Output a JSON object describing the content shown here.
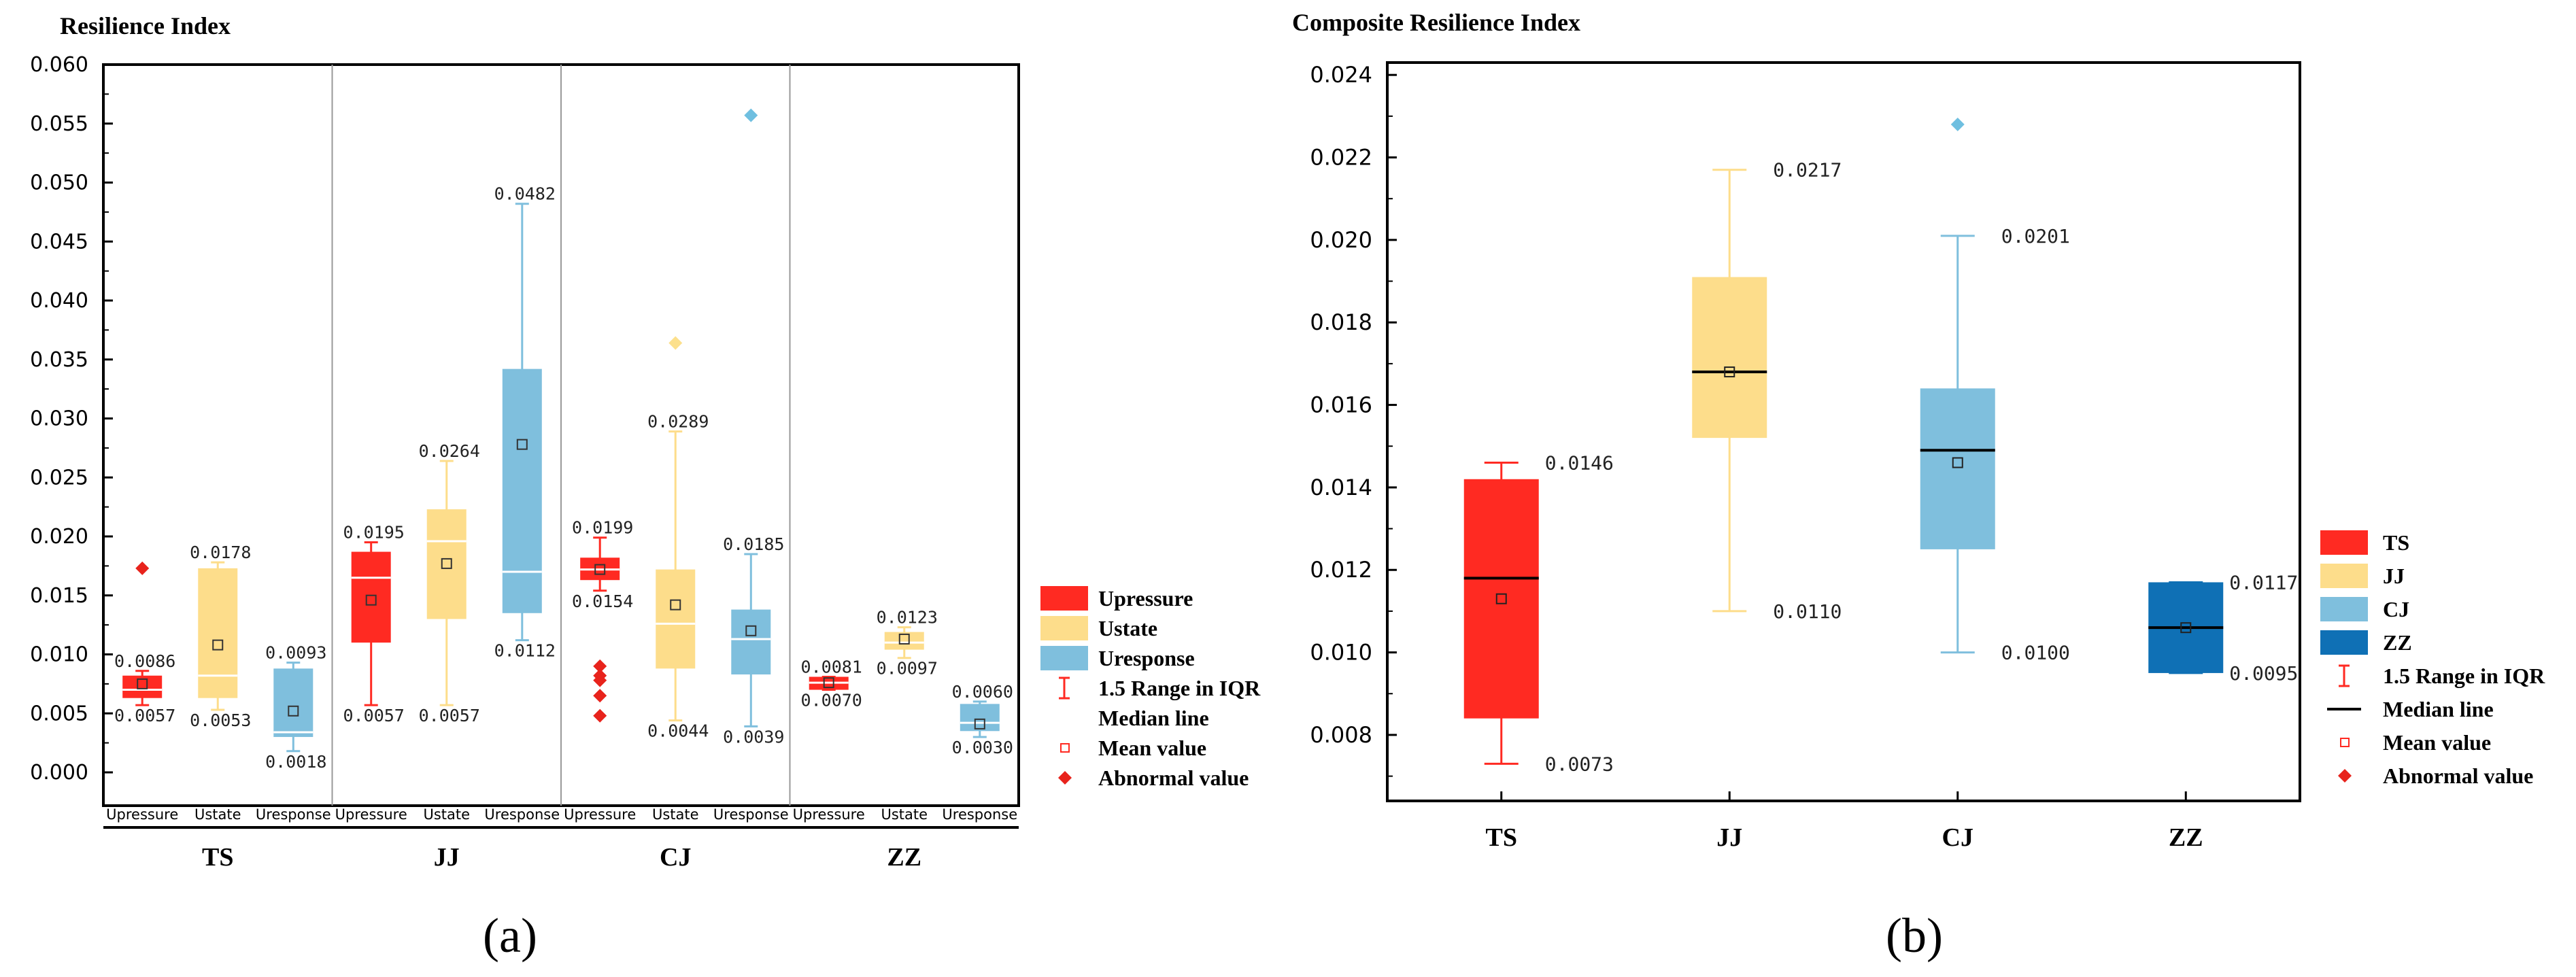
{
  "colors": {
    "red": "#FF2A22",
    "yellow": "#FDDD8B",
    "lightblue": "#7FBFDD",
    "darkblue": "#0F70B5",
    "axis": "#000000",
    "sep": "#999999",
    "outlier_red": "#E8231C",
    "outlier_yellow": "#FCE08C",
    "outlier_blue": "#6FBFE0"
  },
  "chart_data": [
    {
      "id": "a",
      "type": "box",
      "title": "Resilience Index",
      "ylim": [
        0.0,
        0.06
      ],
      "yticks": [
        "0.000",
        "0.005",
        "0.010",
        "0.015",
        "0.020",
        "0.025",
        "0.030",
        "0.035",
        "0.040",
        "0.045",
        "0.050",
        "0.055",
        "0.060"
      ],
      "groups": [
        "TS",
        "JJ",
        "CJ",
        "ZZ"
      ],
      "subcategories": [
        "Upressure",
        "Ustate",
        "Uresponse"
      ],
      "boxes": [
        {
          "group": "TS",
          "sub": "Upressure",
          "color": "red",
          "median_color": "white",
          "min": 0.0057,
          "q1": 0.0063,
          "median": 0.007,
          "q3": 0.0082,
          "max": 0.0086,
          "mean": 0.0075,
          "outliers": [
            0.0173
          ],
          "labels": [
            {
              "text": "0.0086",
              "value": 0.0086
            },
            {
              "text": "0.0057",
              "value": 0.0057
            }
          ]
        },
        {
          "group": "TS",
          "sub": "Ustate",
          "color": "yellow",
          "median_color": "white",
          "min": 0.0053,
          "q1": 0.0063,
          "median": 0.0082,
          "q3": 0.0173,
          "max": 0.0178,
          "mean": 0.0108,
          "outliers": [],
          "labels": [
            {
              "text": "0.0178",
              "value": 0.0178
            },
            {
              "text": "0.0053",
              "value": 0.0053
            }
          ]
        },
        {
          "group": "TS",
          "sub": "Uresponse",
          "color": "lightblue",
          "median_color": "white",
          "min": 0.0018,
          "q1": 0.003,
          "median": 0.0034,
          "q3": 0.0088,
          "max": 0.0093,
          "mean": 0.0052,
          "outliers": [],
          "labels": [
            {
              "text": "0.0093",
              "value": 0.0093
            },
            {
              "text": "0.0018",
              "value": 0.0018
            }
          ]
        },
        {
          "group": "JJ",
          "sub": "Upressure",
          "color": "red",
          "median_color": "white",
          "min": 0.0057,
          "q1": 0.011,
          "median": 0.0165,
          "q3": 0.0187,
          "max": 0.0195,
          "mean": 0.0146,
          "outliers": [],
          "labels": [
            {
              "text": "0.0195",
              "value": 0.0195
            },
            {
              "text": "0.0057",
              "value": 0.0057
            }
          ]
        },
        {
          "group": "JJ",
          "sub": "Ustate",
          "color": "yellow",
          "median_color": "white",
          "min": 0.0057,
          "q1": 0.013,
          "median": 0.0196,
          "q3": 0.0223,
          "max": 0.0264,
          "mean": 0.0177,
          "outliers": [],
          "labels": [
            {
              "text": "0.0264",
              "value": 0.0264
            },
            {
              "text": "0.0057",
              "value": 0.0057
            }
          ]
        },
        {
          "group": "JJ",
          "sub": "Uresponse",
          "color": "lightblue",
          "median_color": "white",
          "min": 0.0112,
          "q1": 0.0135,
          "median": 0.017,
          "q3": 0.0342,
          "max": 0.0482,
          "mean": 0.0278,
          "outliers": [],
          "labels": [
            {
              "text": "0.0482",
              "value": 0.0482
            },
            {
              "text": "0.0112",
              "value": 0.0112
            }
          ]
        },
        {
          "group": "CJ",
          "sub": "Upressure",
          "color": "red",
          "median_color": "white",
          "min": 0.0154,
          "q1": 0.0163,
          "median": 0.0172,
          "q3": 0.0182,
          "max": 0.0199,
          "mean": 0.0172,
          "outliers": [
            0.009,
            0.0082,
            0.0078,
            0.0065,
            0.0048
          ],
          "labels": [
            {
              "text": "0.0199",
              "value": 0.0199
            },
            {
              "text": "0.0154",
              "value": 0.0154
            }
          ]
        },
        {
          "group": "CJ",
          "sub": "Ustate",
          "color": "yellow",
          "median_color": "white",
          "min": 0.0044,
          "q1": 0.0088,
          "median": 0.0126,
          "q3": 0.0172,
          "max": 0.0289,
          "mean": 0.0142,
          "outliers": [
            0.0364
          ],
          "labels": [
            {
              "text": "0.0289",
              "value": 0.0289
            },
            {
              "text": "0.0044",
              "value": 0.0044
            }
          ]
        },
        {
          "group": "CJ",
          "sub": "Uresponse",
          "color": "lightblue",
          "median_color": "white",
          "min": 0.0039,
          "q1": 0.0083,
          "median": 0.0113,
          "q3": 0.0138,
          "max": 0.0185,
          "mean": 0.012,
          "outliers": [
            0.0557
          ],
          "labels": [
            {
              "text": "0.0185",
              "value": 0.0185
            },
            {
              "text": "0.0039",
              "value": 0.0039
            }
          ]
        },
        {
          "group": "ZZ",
          "sub": "Upressure",
          "color": "red",
          "median_color": "white",
          "min": 0.007,
          "q1": 0.007,
          "median": 0.0076,
          "q3": 0.0081,
          "max": 0.0081,
          "mean": 0.0076,
          "outliers": [],
          "labels": [
            {
              "text": "0.0081",
              "value": 0.0081
            },
            {
              "text": "0.0070",
              "value": 0.007
            }
          ]
        },
        {
          "group": "ZZ",
          "sub": "Ustate",
          "color": "yellow",
          "median_color": "white",
          "min": 0.0097,
          "q1": 0.0104,
          "median": 0.011,
          "q3": 0.0119,
          "max": 0.0123,
          "mean": 0.0113,
          "outliers": [],
          "labels": [
            {
              "text": "0.0123",
              "value": 0.0123
            },
            {
              "text": "0.0097",
              "value": 0.0097
            }
          ]
        },
        {
          "group": "ZZ",
          "sub": "Uresponse",
          "color": "lightblue",
          "median_color": "white",
          "min": 0.003,
          "q1": 0.0035,
          "median": 0.0042,
          "q3": 0.0058,
          "max": 0.006,
          "mean": 0.0041,
          "outliers": [],
          "labels": [
            {
              "text": "0.0060",
              "value": 0.006
            },
            {
              "text": "0.0030",
              "value": 0.003
            }
          ]
        }
      ],
      "legend": {
        "items": [
          {
            "kind": "patch",
            "color": "red",
            "label": "Upressure"
          },
          {
            "kind": "patch",
            "color": "yellow",
            "label": "Ustate"
          },
          {
            "kind": "patch",
            "color": "lightblue",
            "label": "Uresponse"
          },
          {
            "kind": "errorbar",
            "color": "red",
            "label": "1.5 Range in IQR"
          },
          {
            "kind": "none",
            "label": "Median line"
          },
          {
            "kind": "meansq",
            "label": "Mean value"
          },
          {
            "kind": "diamond",
            "label": "Abnormal value"
          }
        ]
      },
      "panel_label": "(a)"
    },
    {
      "id": "b",
      "type": "box",
      "title": "Composite Resilience Index",
      "ylim": [
        0.0064,
        0.0243
      ],
      "yticks": [
        "0.008",
        "0.010",
        "0.012",
        "0.014",
        "0.016",
        "0.018",
        "0.020",
        "0.022",
        "0.024"
      ],
      "categories": [
        "TS",
        "JJ",
        "CJ",
        "ZZ"
      ],
      "boxes": [
        {
          "cat": "TS",
          "color": "red",
          "min": 0.0073,
          "q1": 0.0084,
          "median": 0.0118,
          "q3": 0.0142,
          "max": 0.0146,
          "mean": 0.0113,
          "outliers": [],
          "labels": [
            {
              "text": "0.0146",
              "value": 0.0146
            },
            {
              "text": "0.0073",
              "value": 0.0073
            }
          ]
        },
        {
          "cat": "JJ",
          "color": "yellow",
          "min": 0.011,
          "q1": 0.0152,
          "median": 0.0168,
          "q3": 0.0191,
          "max": 0.0217,
          "mean": 0.0168,
          "outliers": [],
          "labels": [
            {
              "text": "0.0217",
              "value": 0.0217
            },
            {
              "text": "0.0110",
              "value": 0.011
            }
          ]
        },
        {
          "cat": "CJ",
          "color": "lightblue",
          "min": 0.01,
          "q1": 0.0125,
          "median": 0.0149,
          "q3": 0.0164,
          "max": 0.0201,
          "mean": 0.0146,
          "outliers": [
            0.0228
          ],
          "labels": [
            {
              "text": "0.0201",
              "value": 0.0201
            },
            {
              "text": "0.0100",
              "value": 0.01
            }
          ]
        },
        {
          "cat": "ZZ",
          "color": "darkblue",
          "min": 0.0095,
          "q1": 0.0095,
          "median": 0.0106,
          "q3": 0.0117,
          "max": 0.0117,
          "mean": 0.0106,
          "outliers": [],
          "labels": [
            {
              "text": "0.0117",
              "value": 0.0117
            },
            {
              "text": "0.0095",
              "value": 0.0095
            }
          ]
        }
      ],
      "legend": {
        "items": [
          {
            "kind": "patch",
            "color": "red",
            "label": "TS"
          },
          {
            "kind": "patch",
            "color": "yellow",
            "label": "JJ"
          },
          {
            "kind": "patch",
            "color": "lightblue",
            "label": "CJ"
          },
          {
            "kind": "patch",
            "color": "darkblue",
            "label": "ZZ"
          },
          {
            "kind": "errorbar",
            "color": "red",
            "label": "1.5 Range in IQR"
          },
          {
            "kind": "medianline",
            "label": "Median line"
          },
          {
            "kind": "meansq",
            "label": "Mean value"
          },
          {
            "kind": "diamond",
            "label": "Abnormal value"
          }
        ]
      },
      "panel_label": "(b)"
    }
  ]
}
